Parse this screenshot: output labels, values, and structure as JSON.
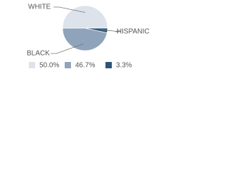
{
  "chart_data": {
    "type": "pie",
    "categories": [
      "WHITE",
      "BLACK",
      "HISPANIC"
    ],
    "values": [
      50.0,
      46.7,
      3.3
    ],
    "value_labels": [
      "50.0%",
      "46.7%",
      "3.3%"
    ],
    "colors": [
      "#dce3eb",
      "#8fa4ba",
      "#2c5577"
    ]
  }
}
